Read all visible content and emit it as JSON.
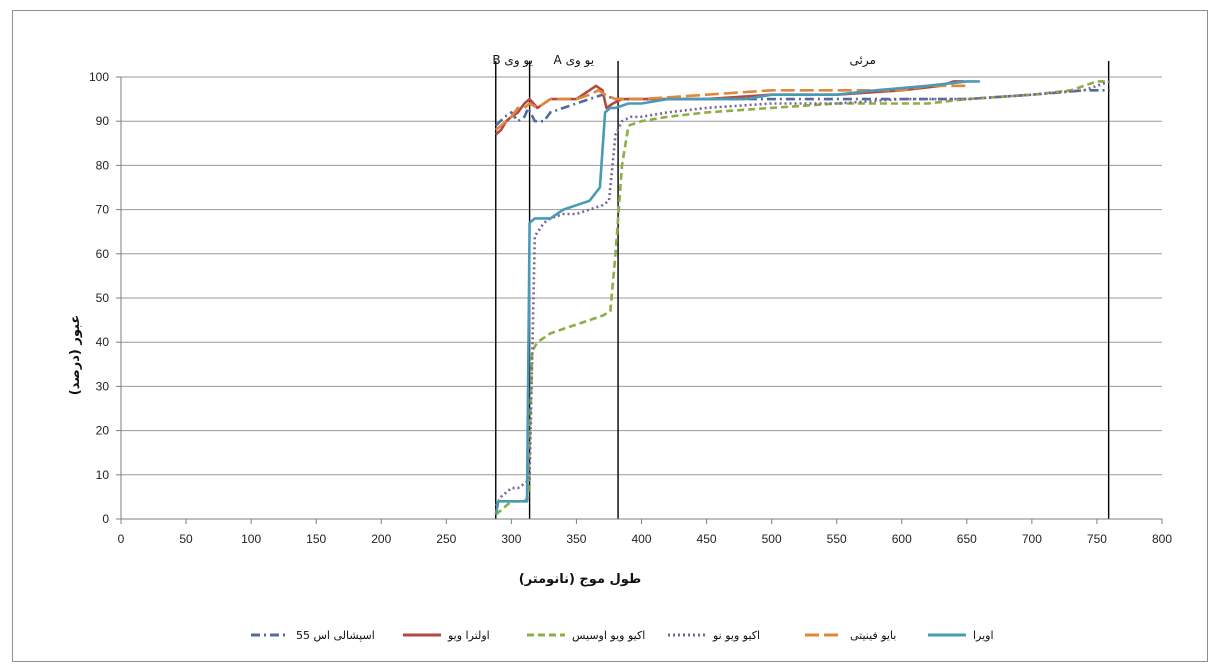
{
  "chart_data": {
    "type": "line",
    "title": "",
    "xlabel": "طول موج (نانومتر)",
    "ylabel": "عبور (درصد)",
    "xlim": [
      0,
      800
    ],
    "ylim": [
      0,
      100
    ],
    "x_ticks": [
      0,
      50,
      100,
      150,
      200,
      250,
      300,
      350,
      400,
      450,
      500,
      550,
      600,
      650,
      700,
      750,
      800
    ],
    "y_ticks": [
      0,
      10,
      20,
      30,
      40,
      50,
      60,
      70,
      80,
      90,
      100
    ],
    "grid": "horizontal",
    "legend_position": "bottom",
    "region_lines": [
      288,
      314,
      382,
      759
    ],
    "regions": [
      {
        "label": "یو وی B",
        "x": 301
      },
      {
        "label": "یو وی A",
        "x": 348
      },
      {
        "label": "مرئی",
        "x": 570
      }
    ],
    "series": [
      {
        "name": "اسپشالی اس 55",
        "color": "#4f6d9c",
        "dash": "9 4 2 4",
        "points": [
          [
            288,
            89
          ],
          [
            295,
            91
          ],
          [
            300,
            92
          ],
          [
            305,
            90
          ],
          [
            310,
            91
          ],
          [
            313,
            93
          ],
          [
            318,
            90
          ],
          [
            325,
            90
          ],
          [
            330,
            92
          ],
          [
            340,
            93
          ],
          [
            350,
            94
          ],
          [
            360,
            95
          ],
          [
            370,
            96
          ],
          [
            380,
            95
          ],
          [
            400,
            95
          ],
          [
            450,
            95
          ],
          [
            500,
            95
          ],
          [
            550,
            95
          ],
          [
            600,
            95
          ],
          [
            620,
            95
          ],
          [
            650,
            95
          ],
          [
            700,
            96
          ],
          [
            740,
            97
          ],
          [
            760,
            97
          ]
        ]
      },
      {
        "name": "اولترا ویو",
        "color": "#b24a43",
        "dash": "",
        "points": [
          [
            288,
            87
          ],
          [
            292,
            88
          ],
          [
            296,
            90
          ],
          [
            300,
            91
          ],
          [
            305,
            92
          ],
          [
            310,
            94
          ],
          [
            314,
            95
          ],
          [
            320,
            93
          ],
          [
            330,
            95
          ],
          [
            340,
            95
          ],
          [
            350,
            95
          ],
          [
            355,
            96
          ],
          [
            360,
            97
          ],
          [
            365,
            98
          ],
          [
            370,
            97
          ],
          [
            373,
            93
          ],
          [
            378,
            94
          ],
          [
            385,
            95
          ],
          [
            400,
            95
          ],
          [
            450,
            95
          ],
          [
            500,
            96
          ],
          [
            550,
            96
          ],
          [
            600,
            97
          ],
          [
            630,
            98
          ],
          [
            640,
            99
          ],
          [
            648,
            99
          ]
        ]
      },
      {
        "name": "اکیو ویو اوسیس",
        "color": "#8cae46",
        "dash": "7 4",
        "points": [
          [
            288,
            1
          ],
          [
            292,
            2
          ],
          [
            296,
            3
          ],
          [
            300,
            4
          ],
          [
            305,
            4
          ],
          [
            310,
            4
          ],
          [
            313,
            5
          ],
          [
            316,
            38
          ],
          [
            320,
            40
          ],
          [
            330,
            42
          ],
          [
            340,
            43
          ],
          [
            350,
            44
          ],
          [
            360,
            45
          ],
          [
            370,
            46
          ],
          [
            376,
            47
          ],
          [
            380,
            60
          ],
          [
            385,
            80
          ],
          [
            390,
            89
          ],
          [
            400,
            90
          ],
          [
            420,
            91
          ],
          [
            450,
            92
          ],
          [
            500,
            93
          ],
          [
            550,
            94
          ],
          [
            600,
            94
          ],
          [
            620,
            94
          ],
          [
            650,
            95
          ],
          [
            700,
            96
          ],
          [
            730,
            97
          ],
          [
            750,
            99
          ],
          [
            760,
            99
          ]
        ]
      },
      {
        "name": "اکیو ویو نو",
        "color": "#7c6397",
        "dash": "2 3",
        "points": [
          [
            288,
            3
          ],
          [
            292,
            5
          ],
          [
            296,
            6
          ],
          [
            300,
            7
          ],
          [
            305,
            7
          ],
          [
            310,
            8
          ],
          [
            314,
            9
          ],
          [
            318,
            64
          ],
          [
            325,
            67
          ],
          [
            330,
            68
          ],
          [
            340,
            69
          ],
          [
            350,
            69
          ],
          [
            360,
            70
          ],
          [
            370,
            71
          ],
          [
            375,
            72
          ],
          [
            380,
            87
          ],
          [
            385,
            90
          ],
          [
            392,
            91
          ],
          [
            400,
            91
          ],
          [
            420,
            92
          ],
          [
            450,
            93
          ],
          [
            500,
            94
          ],
          [
            550,
            94
          ],
          [
            600,
            95
          ],
          [
            650,
            95
          ],
          [
            700,
            96
          ],
          [
            740,
            97
          ],
          [
            760,
            99
          ]
        ]
      },
      {
        "name": "بایو فینیتی",
        "color": "#e0873a",
        "dash": "14 5",
        "points": [
          [
            288,
            88
          ],
          [
            292,
            89
          ],
          [
            296,
            90
          ],
          [
            300,
            91
          ],
          [
            305,
            93
          ],
          [
            310,
            93
          ],
          [
            314,
            94
          ],
          [
            320,
            93
          ],
          [
            330,
            95
          ],
          [
            340,
            95
          ],
          [
            350,
            95
          ],
          [
            360,
            96
          ],
          [
            367,
            97
          ],
          [
            372,
            96
          ],
          [
            380,
            95
          ],
          [
            400,
            95
          ],
          [
            450,
            96
          ],
          [
            500,
            97
          ],
          [
            550,
            97
          ],
          [
            600,
            97
          ],
          [
            620,
            98
          ],
          [
            650,
            98
          ]
        ]
      },
      {
        "name": "اویرا",
        "color": "#4a9ab5",
        "dash": "",
        "points": [
          [
            288,
            1
          ],
          [
            290,
            4
          ],
          [
            300,
            4
          ],
          [
            312,
            4
          ],
          [
            314,
            67
          ],
          [
            318,
            68
          ],
          [
            330,
            68
          ],
          [
            335,
            69
          ],
          [
            340,
            70
          ],
          [
            350,
            71
          ],
          [
            360,
            72
          ],
          [
            368,
            75
          ],
          [
            372,
            92
          ],
          [
            376,
            93
          ],
          [
            380,
            93
          ],
          [
            390,
            94
          ],
          [
            400,
            94
          ],
          [
            420,
            95
          ],
          [
            450,
            95
          ],
          [
            480,
            95
          ],
          [
            500,
            96
          ],
          [
            550,
            96
          ],
          [
            580,
            97
          ],
          [
            620,
            98
          ],
          [
            650,
            99
          ],
          [
            660,
            99
          ]
        ]
      }
    ]
  }
}
